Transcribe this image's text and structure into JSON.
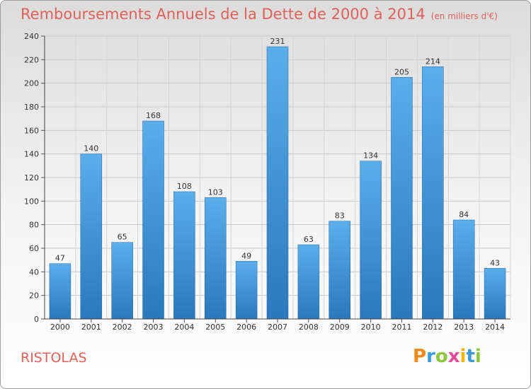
{
  "header": {
    "title": "Remboursements Annuels de la Dette de 2000 à 2014",
    "subtitle": "(en milliers d'€)"
  },
  "footer": {
    "commune": "RISTOLAS",
    "logo_letters": [
      "P",
      "r",
      "o",
      "x",
      "i",
      "t",
      "i"
    ]
  },
  "colors": {
    "title": "#e0605a",
    "bar_top": "#5aaeea",
    "bar_bottom": "#2a78bd"
  },
  "chart_data": {
    "type": "bar",
    "categories": [
      "2000",
      "2001",
      "2002",
      "2003",
      "2004",
      "2005",
      "2006",
      "2007",
      "2008",
      "2009",
      "2010",
      "2011",
      "2012",
      "2013",
      "2014"
    ],
    "values": [
      47,
      140,
      65,
      168,
      108,
      103,
      49,
      231,
      63,
      83,
      134,
      205,
      214,
      84,
      43
    ],
    "ylim": [
      0,
      240
    ],
    "yticks": [
      0,
      20,
      40,
      60,
      80,
      100,
      120,
      140,
      160,
      180,
      200,
      220,
      240
    ],
    "grid": true,
    "data_labels": true
  }
}
